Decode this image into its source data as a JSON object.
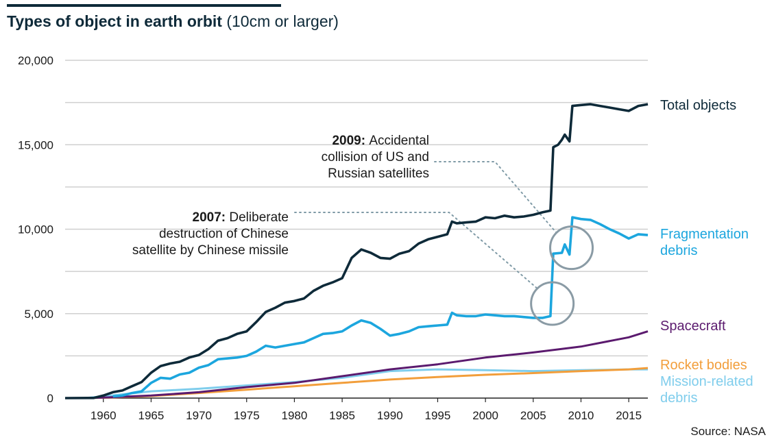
{
  "header": {
    "title_bold": "Types of object in earth orbit",
    "title_sub": "(10cm or larger)"
  },
  "footer": {
    "source": "Source: NASA"
  },
  "chart_data": {
    "type": "line",
    "title": "Types of object in earth orbit (10cm or larger)",
    "xlabel": "",
    "ylabel": "",
    "xlim": [
      1956,
      2017
    ],
    "ylim": [
      0,
      20000
    ],
    "x_ticks": [
      1960,
      1965,
      1970,
      1975,
      1980,
      1985,
      1990,
      1995,
      2000,
      2005,
      2010,
      2015
    ],
    "y_ticks": [
      0,
      5000,
      10000,
      15000,
      20000
    ],
    "y_tick_labels": [
      "0",
      "5,000",
      "10,000",
      "15,000",
      "20,000"
    ],
    "grid": true,
    "legend": "inline-right",
    "series": [
      {
        "name": "Total objects",
        "color": "#0e2a39",
        "points": [
          [
            1956,
            0
          ],
          [
            1959,
            10
          ],
          [
            1960,
            150
          ],
          [
            1961,
            350
          ],
          [
            1962,
            450
          ],
          [
            1963,
            700
          ],
          [
            1964,
            950
          ],
          [
            1965,
            1500
          ],
          [
            1966,
            1900
          ],
          [
            1967,
            2050
          ],
          [
            1968,
            2150
          ],
          [
            1969,
            2400
          ],
          [
            1970,
            2550
          ],
          [
            1971,
            2900
          ],
          [
            1972,
            3400
          ],
          [
            1973,
            3550
          ],
          [
            1974,
            3800
          ],
          [
            1975,
            3950
          ],
          [
            1976,
            4500
          ],
          [
            1977,
            5100
          ],
          [
            1978,
            5350
          ],
          [
            1979,
            5650
          ],
          [
            1980,
            5750
          ],
          [
            1981,
            5900
          ],
          [
            1982,
            6350
          ],
          [
            1983,
            6650
          ],
          [
            1984,
            6850
          ],
          [
            1985,
            7100
          ],
          [
            1986,
            8300
          ],
          [
            1987,
            8800
          ],
          [
            1988,
            8600
          ],
          [
            1989,
            8300
          ],
          [
            1990,
            8250
          ],
          [
            1991,
            8550
          ],
          [
            1992,
            8700
          ],
          [
            1993,
            9150
          ],
          [
            1994,
            9400
          ],
          [
            1995,
            9550
          ],
          [
            1996,
            9700
          ],
          [
            1996.5,
            10450
          ],
          [
            1997,
            10350
          ],
          [
            1998,
            10400
          ],
          [
            1999,
            10450
          ],
          [
            2000,
            10700
          ],
          [
            2001,
            10650
          ],
          [
            2002,
            10800
          ],
          [
            2003,
            10700
          ],
          [
            2004,
            10750
          ],
          [
            2005,
            10850
          ],
          [
            2006,
            11000
          ],
          [
            2006.8,
            11100
          ],
          [
            2007.1,
            14850
          ],
          [
            2007.6,
            15000
          ],
          [
            2008,
            15300
          ],
          [
            2008.3,
            15600
          ],
          [
            2008.8,
            15200
          ],
          [
            2009.1,
            17300
          ],
          [
            2010,
            17350
          ],
          [
            2011,
            17400
          ],
          [
            2012,
            17300
          ],
          [
            2013,
            17200
          ],
          [
            2014,
            17100
          ],
          [
            2015,
            17000
          ],
          [
            2016,
            17300
          ],
          [
            2017,
            17400
          ]
        ]
      },
      {
        "name": "Fragmentation debris",
        "color": "#1ca6de",
        "points": [
          [
            1961,
            100
          ],
          [
            1962,
            150
          ],
          [
            1963,
            300
          ],
          [
            1964,
            400
          ],
          [
            1965,
            900
          ],
          [
            1966,
            1200
          ],
          [
            1967,
            1150
          ],
          [
            1968,
            1400
          ],
          [
            1969,
            1500
          ],
          [
            1970,
            1800
          ],
          [
            1971,
            1950
          ],
          [
            1972,
            2300
          ],
          [
            1973,
            2350
          ],
          [
            1974,
            2400
          ],
          [
            1975,
            2500
          ],
          [
            1976,
            2750
          ],
          [
            1977,
            3100
          ],
          [
            1978,
            3000
          ],
          [
            1979,
            3100
          ],
          [
            1980,
            3200
          ],
          [
            1981,
            3300
          ],
          [
            1982,
            3550
          ],
          [
            1983,
            3800
          ],
          [
            1984,
            3850
          ],
          [
            1985,
            3950
          ],
          [
            1986,
            4300
          ],
          [
            1987,
            4600
          ],
          [
            1988,
            4450
          ],
          [
            1989,
            4100
          ],
          [
            1990,
            3700
          ],
          [
            1991,
            3800
          ],
          [
            1992,
            3950
          ],
          [
            1993,
            4200
          ],
          [
            1994,
            4250
          ],
          [
            1995,
            4300
          ],
          [
            1996,
            4350
          ],
          [
            1996.5,
            5050
          ],
          [
            1997,
            4900
          ],
          [
            1998,
            4850
          ],
          [
            1999,
            4850
          ],
          [
            2000,
            4950
          ],
          [
            2001,
            4900
          ],
          [
            2002,
            4850
          ],
          [
            2003,
            4850
          ],
          [
            2004,
            4800
          ],
          [
            2005,
            4750
          ],
          [
            2006,
            4750
          ],
          [
            2006.8,
            4850
          ],
          [
            2007.1,
            8550
          ],
          [
            2008,
            8600
          ],
          [
            2008.3,
            9100
          ],
          [
            2008.8,
            8500
          ],
          [
            2009.1,
            10700
          ],
          [
            2010,
            10600
          ],
          [
            2011,
            10550
          ],
          [
            2012,
            10300
          ],
          [
            2013,
            10000
          ],
          [
            2014,
            9750
          ],
          [
            2015,
            9450
          ],
          [
            2016,
            9700
          ],
          [
            2017,
            9650
          ]
        ]
      },
      {
        "name": "Spacecraft",
        "color": "#5b1a6e",
        "points": [
          [
            1958,
            0
          ],
          [
            1960,
            30
          ],
          [
            1965,
            150
          ],
          [
            1970,
            350
          ],
          [
            1975,
            650
          ],
          [
            1980,
            900
          ],
          [
            1985,
            1300
          ],
          [
            1990,
            1700
          ],
          [
            1995,
            2000
          ],
          [
            2000,
            2400
          ],
          [
            2005,
            2700
          ],
          [
            2010,
            3050
          ],
          [
            2015,
            3600
          ],
          [
            2017,
            3950
          ]
        ]
      },
      {
        "name": "Rocket bodies",
        "color": "#f29e3b",
        "points": [
          [
            1958,
            0
          ],
          [
            1960,
            20
          ],
          [
            1965,
            120
          ],
          [
            1970,
            300
          ],
          [
            1975,
            500
          ],
          [
            1980,
            700
          ],
          [
            1985,
            900
          ],
          [
            1990,
            1100
          ],
          [
            1995,
            1250
          ],
          [
            2000,
            1380
          ],
          [
            2005,
            1480
          ],
          [
            2010,
            1600
          ],
          [
            2015,
            1700
          ],
          [
            2017,
            1780
          ]
        ]
      },
      {
        "name": "Mission-related debris",
        "color": "#7fcdec",
        "points": [
          [
            1958,
            0
          ],
          [
            1960,
            100
          ],
          [
            1965,
            400
          ],
          [
            1970,
            550
          ],
          [
            1975,
            750
          ],
          [
            1980,
            950
          ],
          [
            1985,
            1200
          ],
          [
            1990,
            1600
          ],
          [
            1995,
            1700
          ],
          [
            2000,
            1650
          ],
          [
            2005,
            1600
          ],
          [
            2010,
            1650
          ],
          [
            2015,
            1700
          ],
          [
            2017,
            1700
          ]
        ]
      }
    ],
    "series_labels": [
      {
        "lines": [
          "Total objects"
        ],
        "color": "#0e2a39"
      },
      {
        "lines": [
          "Fragmentation",
          "debris"
        ],
        "color": "#1ca6de"
      },
      {
        "lines": [
          "Spacecraft"
        ],
        "color": "#5b1a6e"
      },
      {
        "lines": [
          "Rocket bodies"
        ],
        "color": "#f29e3b"
      },
      {
        "lines": [
          "Mission-related",
          "debris"
        ],
        "color": "#7fcdec"
      }
    ],
    "annotations": [
      {
        "year_bold": "2009:",
        "lines": [
          "Accidental",
          "collision of US and",
          "Russian satellites"
        ],
        "target": [
          2009,
          8900
        ]
      },
      {
        "year_bold": "2007:",
        "lines": [
          "Deliberate",
          "destruction of Chinese",
          "satellite by Chinese missile"
        ],
        "target": [
          2007,
          5600
        ]
      }
    ]
  }
}
